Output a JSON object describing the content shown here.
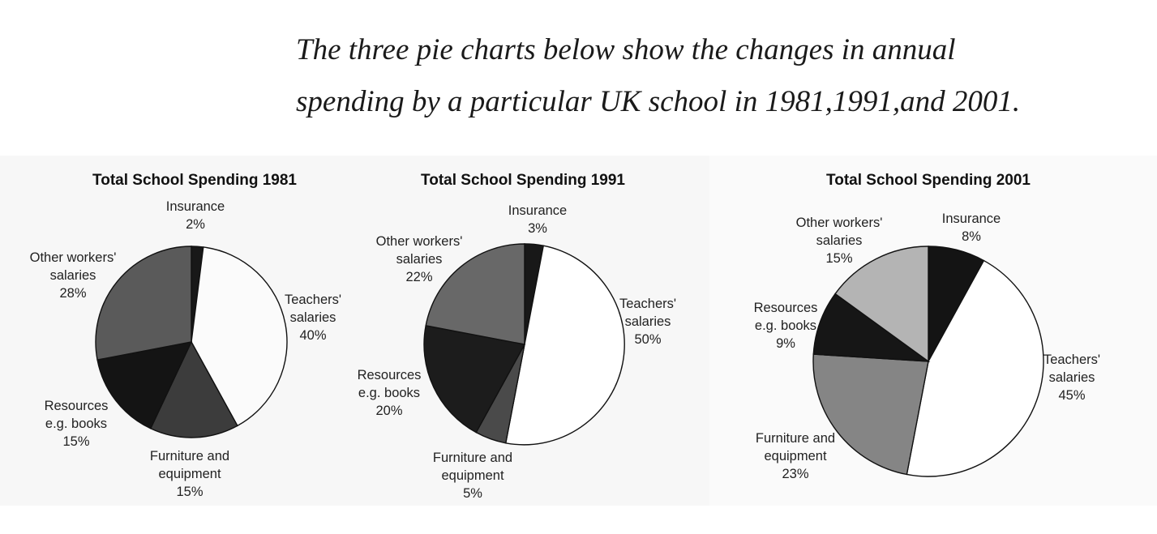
{
  "headline": {
    "line1": "The three pie charts below show the changes in annual",
    "line2": "spending by a particular UK school in 1981,1991,and 2001."
  },
  "chart_data": [
    {
      "type": "pie",
      "title": "Total School Spending 1981",
      "slices": [
        {
          "label": [
            "Insurance"
          ],
          "value": 2,
          "text": "2%",
          "color": "#181818"
        },
        {
          "label": [
            "Teachers'",
            "salaries"
          ],
          "value": 40,
          "text": "40%",
          "color": "#fbfbfb"
        },
        {
          "label": [
            "Furniture and",
            "equipment"
          ],
          "value": 15,
          "text": "15%",
          "color": "#3c3c3c"
        },
        {
          "label": [
            "Resources",
            "e.g. books"
          ],
          "value": 15,
          "text": "15%",
          "color": "#141414"
        },
        {
          "label": [
            "Other workers'",
            "salaries"
          ],
          "value": 28,
          "text": "28%",
          "color": "#5a5a5a"
        }
      ]
    },
    {
      "type": "pie",
      "title": "Total School Spending 1991",
      "slices": [
        {
          "label": [
            "Insurance"
          ],
          "value": 3,
          "text": "3%",
          "color": "#181818"
        },
        {
          "label": [
            "Teachers'",
            "salaries"
          ],
          "value": 50,
          "text": "50%",
          "color": "#ffffff"
        },
        {
          "label": [
            "Furniture and",
            "equipment"
          ],
          "value": 5,
          "text": "5%",
          "color": "#4a4a4a"
        },
        {
          "label": [
            "Resources",
            "e.g. books"
          ],
          "value": 20,
          "text": "20%",
          "color": "#1c1c1c"
        },
        {
          "label": [
            "Other workers'",
            "salaries"
          ],
          "value": 22,
          "text": "22%",
          "color": "#686868"
        }
      ]
    },
    {
      "type": "pie",
      "title": "Total School Spending 2001",
      "slices": [
        {
          "label": [
            "Insurance"
          ],
          "value": 8,
          "text": "8%",
          "color": "#141414"
        },
        {
          "label": [
            "Teachers'",
            "salaries"
          ],
          "value": 45,
          "text": "45%",
          "color": "#ffffff"
        },
        {
          "label": [
            "Furniture and",
            "equipment"
          ],
          "value": 23,
          "text": "23%",
          "color": "#858585"
        },
        {
          "label": [
            "Resources",
            "e.g. books"
          ],
          "value": 9,
          "text": "9%",
          "color": "#161616"
        },
        {
          "label": [
            "Other workers'",
            "salaries"
          ],
          "value": 15,
          "text": "15%",
          "color": "#b4b4b4"
        }
      ]
    }
  ]
}
